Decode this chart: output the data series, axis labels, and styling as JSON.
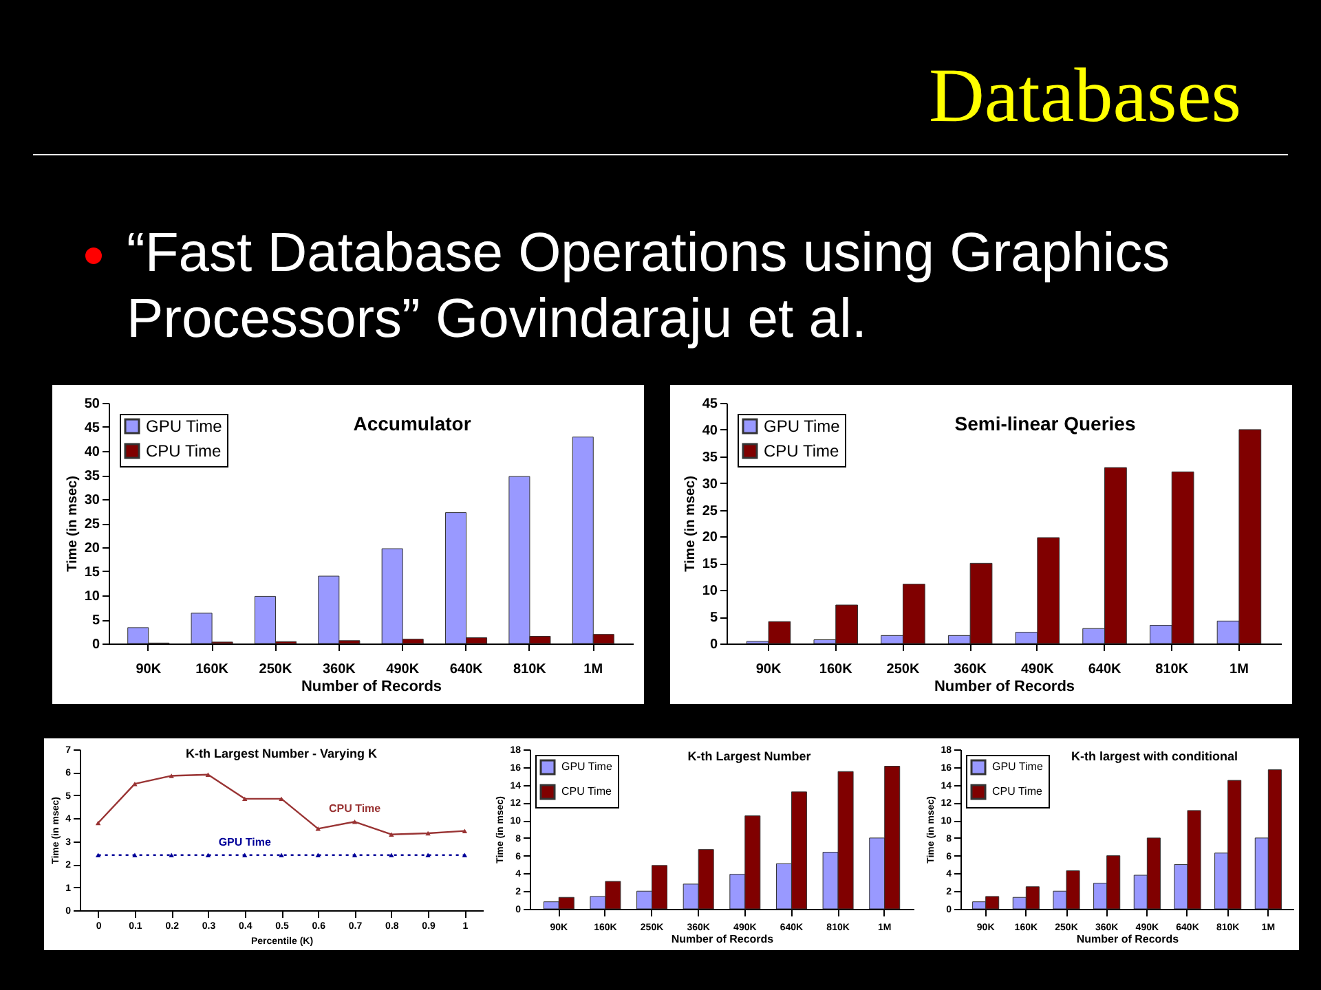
{
  "chart_data": [
    {
      "type": "other",
      "title": "Databases",
      "annotations": [
        "“Fast Database Operations using Graphics Processors” Govindaraju et al."
      ]
    },
    {
      "type": "bar",
      "title": "Accumulator",
      "xlabel": "Number of Records",
      "ylabel": "Time (in msec)",
      "categories": [
        "90K",
        "160K",
        "250K",
        "360K",
        "490K",
        "640K",
        "810K",
        "1M"
      ],
      "series": [
        {
          "name": "GPU Time",
          "color": "#9999ff",
          "values": [
            3.3,
            6.3,
            9.8,
            14,
            19.7,
            27.2,
            34.7,
            42.9
          ]
        },
        {
          "name": "CPU Time",
          "color": "#800000",
          "values": [
            0.1,
            0.3,
            0.4,
            0.6,
            0.9,
            1.2,
            1.5,
            1.9
          ]
        }
      ],
      "ylim": [
        0,
        50
      ],
      "yticks": [
        0,
        5,
        10,
        15,
        20,
        25,
        30,
        35,
        40,
        45,
        50
      ],
      "legend": "top left"
    },
    {
      "type": "bar",
      "title": "Semi-linear Queries",
      "xlabel": "Number of Records",
      "ylabel": "Time (in msec)",
      "categories": [
        "90K",
        "160K",
        "250K",
        "360K",
        "490K",
        "640K",
        "810K",
        "1M"
      ],
      "series": [
        {
          "name": "GPU Time",
          "color": "#9999ff",
          "values": [
            0.4,
            0.7,
            1.5,
            1.5,
            2.1,
            2.8,
            3.4,
            4.2
          ]
        },
        {
          "name": "CPU Time",
          "color": "#800000",
          "values": [
            4.1,
            7.2,
            11.1,
            15,
            19.8,
            32.9,
            32.1,
            40
          ]
        }
      ],
      "ylim": [
        0,
        45
      ],
      "yticks": [
        0,
        5,
        10,
        15,
        20,
        25,
        30,
        35,
        40,
        45
      ],
      "legend": "top left"
    },
    {
      "type": "line",
      "title": "K-th Largest Number - Varying K",
      "xlabel": "Percentile (K)",
      "ylabel": "Time (in msec)",
      "x": [
        0,
        0.1,
        0.2,
        0.3,
        0.4,
        0.5,
        0.6,
        0.7,
        0.8,
        0.9,
        1
      ],
      "series": [
        {
          "name": "CPU Time",
          "color": "#993333",
          "values": [
            3.8,
            5.5,
            5.85,
            5.9,
            4.85,
            4.85,
            3.55,
            3.85,
            3.3,
            3.35,
            3.45
          ],
          "line_style": "solid"
        },
        {
          "name": "GPU Time",
          "color": "#000099",
          "values": [
            2.4,
            2.4,
            2.4,
            2.4,
            2.4,
            2.4,
            2.4,
            2.4,
            2.4,
            2.4,
            2.4
          ],
          "line_style": "dotted"
        }
      ],
      "xlim": [
        -0.05,
        1.05
      ],
      "xticks": [
        0,
        0.1,
        0.2,
        0.3,
        0.4,
        0.5,
        0.6,
        0.7,
        0.8,
        0.9,
        1
      ],
      "ylim": [
        0,
        7
      ],
      "yticks": [
        0,
        1,
        2,
        3,
        4,
        5,
        6,
        7
      ],
      "marker": "triangle"
    },
    {
      "type": "bar",
      "title": "K-th Largest Number",
      "xlabel": "Number of Records",
      "ylabel": "Time (in msec)",
      "categories": [
        "90K",
        "160K",
        "250K",
        "360K",
        "490K",
        "640K",
        "810K",
        "1M"
      ],
      "series": [
        {
          "name": "GPU Time",
          "color": "#9999ff",
          "values": [
            0.8,
            1.4,
            2.0,
            2.8,
            3.9,
            5.1,
            6.4,
            8.0
          ]
        },
        {
          "name": "CPU Time",
          "color": "#800000",
          "values": [
            1.3,
            3.1,
            4.9,
            6.7,
            10.5,
            13.2,
            15.5,
            16.1
          ]
        }
      ],
      "ylim": [
        0,
        18
      ],
      "yticks": [
        0,
        2,
        4,
        6,
        8,
        10,
        12,
        14,
        16,
        18
      ],
      "legend": "top left"
    },
    {
      "type": "bar",
      "title": "K-th largest with conditional",
      "xlabel": "Number of Records",
      "ylabel": "Time (in msec)",
      "categories": [
        "90K",
        "160K",
        "250K",
        "360K",
        "490K",
        "640K",
        "810K",
        "1M"
      ],
      "series": [
        {
          "name": "GPU Time",
          "color": "#9999ff",
          "values": [
            0.8,
            1.3,
            2.0,
            2.9,
            3.8,
            5.0,
            6.3,
            8.0
          ]
        },
        {
          "name": "CPU Time",
          "color": "#800000",
          "values": [
            1.4,
            2.5,
            4.3,
            6.0,
            8.0,
            11.1,
            14.5,
            15.7
          ]
        }
      ],
      "ylim": [
        0,
        18
      ],
      "yticks": [
        0,
        2,
        4,
        6,
        8,
        10,
        12,
        14,
        16,
        18
      ],
      "legend": "top left"
    }
  ]
}
